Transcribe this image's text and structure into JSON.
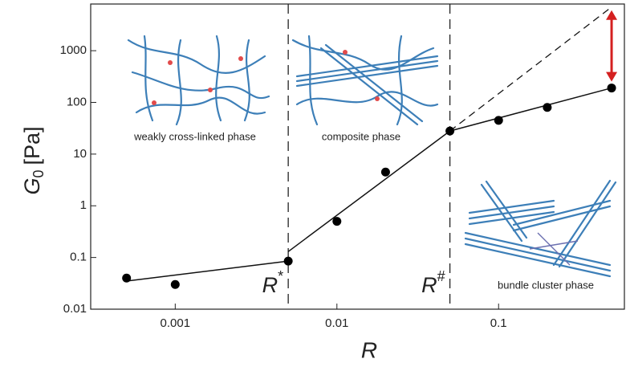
{
  "chart_data": {
    "type": "scatter",
    "xlabel": "R",
    "ylabel": {
      "symbol": "G",
      "subscript": "0",
      "unit": "[Pa]"
    },
    "xscale": "log",
    "yscale": "log",
    "xlim": [
      0.0003,
      0.6
    ],
    "ylim": [
      0.01,
      8000
    ],
    "xticks": [
      0.001,
      0.01,
      0.1
    ],
    "yticks": [
      0.01,
      0.1,
      1,
      10,
      100,
      1000
    ],
    "series": [
      {
        "color": "#000000",
        "x": [
          0.0005,
          0.001,
          0.005,
          0.01,
          0.02,
          0.05,
          0.1,
          0.2,
          0.5
        ],
        "values": [
          0.04,
          0.03,
          0.085,
          0.5,
          4.5,
          28,
          45,
          80,
          190
        ]
      }
    ],
    "fit_lines": [
      {
        "x": [
          0.0005,
          0.005
        ],
        "y": [
          0.035,
          0.085
        ]
      },
      {
        "x": [
          0.005,
          0.05
        ],
        "y": [
          0.13,
          28
        ]
      },
      {
        "x": [
          0.05,
          0.5
        ],
        "y": [
          28,
          190
        ]
      }
    ],
    "extrapolation": {
      "x": [
        0.05,
        0.5
      ],
      "y": [
        28,
        7000
      ]
    },
    "arrow": {
      "x": 0.5,
      "y": [
        190,
        7000
      ],
      "color": "#d42020"
    },
    "thresholds": [
      {
        "x": 0.005,
        "symbol": "R",
        "superscript": "*"
      },
      {
        "x": 0.05,
        "symbol": "R",
        "superscript": "#"
      }
    ],
    "phases": [
      "weakly cross-linked phase",
      "composite phase",
      "bundle cluster phase"
    ]
  }
}
